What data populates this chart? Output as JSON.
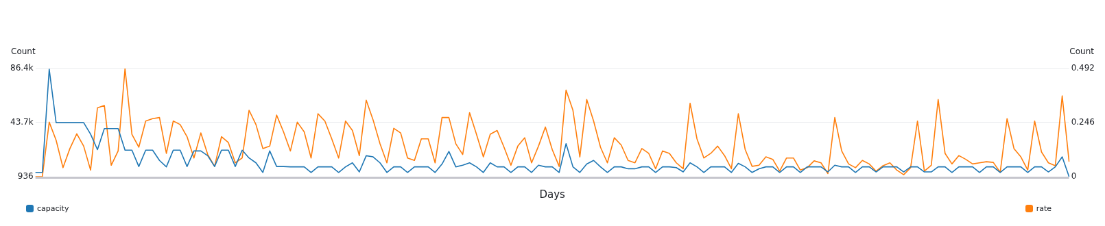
{
  "chart_data": {
    "type": "line",
    "xlabel": "Days",
    "ylabel": "Count",
    "y2label": "Count",
    "categories": [
      null,
      null,
      null,
      null,
      null,
      null,
      null,
      null,
      null,
      null,
      null,
      null,
      null,
      null,
      null,
      null,
      null,
      null,
      null,
      null,
      null,
      null,
      null,
      null,
      null,
      null,
      null,
      null,
      null,
      null,
      null,
      null,
      null,
      null,
      null,
      null,
      null,
      null,
      null,
      null,
      null,
      null,
      null,
      null,
      null,
      null,
      null,
      null,
      null,
      null,
      null,
      null,
      null,
      null,
      null,
      null,
      null,
      null,
      null,
      null,
      null,
      null,
      null,
      null,
      null,
      null,
      null,
      null,
      null,
      null,
      null,
      null,
      null,
      null,
      null,
      null,
      null,
      null,
      null,
      null,
      null,
      null,
      null,
      null,
      null,
      null,
      null,
      null,
      null,
      null,
      null,
      null,
      null,
      null,
      null,
      null,
      null,
      null,
      null,
      null,
      null,
      null,
      null,
      null,
      null,
      null,
      null,
      null,
      null,
      null,
      null,
      null,
      null,
      null,
      null,
      null,
      null,
      null,
      null,
      null,
      null,
      null,
      null,
      null,
      null,
      null,
      null,
      null,
      null,
      null,
      null,
      null,
      null,
      null,
      null,
      null,
      null,
      null,
      null,
      null,
      null,
      null,
      null,
      null,
      null,
      null,
      null,
      null,
      null,
      null,
      null
    ],
    "series": [
      {
        "name": "capacity",
        "color": "#1f77b4",
        "axis": "y",
        "values": [
          4300,
          4300,
          85800,
          43600,
          43600,
          43600,
          43600,
          43600,
          34500,
          22300,
          38900,
          38900,
          38900,
          21900,
          21900,
          9000,
          21900,
          21900,
          13800,
          8700,
          21900,
          21900,
          9000,
          21300,
          21300,
          17500,
          9000,
          21900,
          21900,
          9000,
          21900,
          15700,
          11900,
          4300,
          21300,
          9000,
          9000,
          8700,
          8700,
          8700,
          4300,
          8700,
          8700,
          8700,
          4300,
          8700,
          11900,
          4700,
          17500,
          16600,
          11900,
          4300,
          8700,
          8700,
          4300,
          8700,
          8700,
          8700,
          4300,
          10900,
          20900,
          8700,
          10000,
          11900,
          8700,
          4300,
          11900,
          8700,
          8700,
          4300,
          8700,
          8700,
          4300,
          10000,
          8700,
          8700,
          4300,
          27000,
          8700,
          4300,
          10900,
          13800,
          8700,
          4300,
          8700,
          8700,
          7200,
          7200,
          8700,
          8700,
          4300,
          8700,
          8700,
          8100,
          4700,
          11900,
          8700,
          4300,
          8700,
          8700,
          8700,
          4300,
          11500,
          8700,
          4300,
          7200,
          8700,
          8700,
          4300,
          8700,
          8700,
          4300,
          8700,
          8700,
          8700,
          4700,
          10000,
          8700,
          8700,
          4300,
          8700,
          8700,
          4700,
          8700,
          8700,
          8700,
          4700,
          8700,
          8700,
          4700,
          4700,
          8700,
          8700,
          4300,
          8700,
          8700,
          8700,
          4300,
          8700,
          8700,
          4300,
          8700,
          8700,
          8700,
          4300,
          8700,
          8700,
          4700,
          8700,
          16600,
          936
        ]
      },
      {
        "name": "rate",
        "color": "#ff7f0e",
        "axis": "y2",
        "values": [
          0,
          0,
          0.248,
          0.166,
          0.041,
          0.128,
          0.195,
          0.139,
          0.03,
          0.313,
          0.324,
          0.052,
          0.117,
          0.492,
          0.193,
          0.134,
          0.253,
          0.264,
          0.269,
          0.106,
          0.253,
          0.237,
          0.182,
          0.085,
          0.199,
          0.101,
          0.047,
          0.182,
          0.155,
          0.063,
          0.085,
          0.302,
          0.237,
          0.128,
          0.139,
          0.28,
          0.204,
          0.117,
          0.248,
          0.204,
          0.085,
          0.286,
          0.253,
          0.172,
          0.085,
          0.253,
          0.21,
          0.096,
          0.348,
          0.258,
          0.15,
          0.063,
          0.22,
          0.199,
          0.085,
          0.074,
          0.172,
          0.172,
          0.063,
          0.269,
          0.269,
          0.15,
          0.101,
          0.291,
          0.193,
          0.09,
          0.193,
          0.21,
          0.134,
          0.052,
          0.139,
          0.177,
          0.063,
          0.139,
          0.226,
          0.123,
          0.047,
          0.394,
          0.302,
          0.09,
          0.351,
          0.253,
          0.134,
          0.063,
          0.177,
          0.144,
          0.074,
          0.063,
          0.128,
          0.106,
          0.036,
          0.117,
          0.106,
          0.063,
          0.036,
          0.334,
          0.172,
          0.085,
          0.106,
          0.139,
          0.096,
          0.036,
          0.286,
          0.123,
          0.047,
          0.052,
          0.09,
          0.079,
          0.025,
          0.085,
          0.085,
          0.03,
          0.041,
          0.072,
          0.063,
          0.014,
          0.269,
          0.117,
          0.058,
          0.041,
          0.074,
          0.058,
          0.025,
          0.05,
          0.063,
          0.03,
          0.009,
          0.041,
          0.253,
          0.025,
          0.052,
          0.351,
          0.106,
          0.058,
          0.096,
          0.079,
          0.058,
          0.063,
          0.068,
          0.065,
          0.02,
          0.264,
          0.128,
          0.09,
          0.03,
          0.253,
          0.112,
          0.063,
          0.05,
          0.367,
          0.068
        ]
      }
    ],
    "ylim": [
      936,
      86400
    ],
    "yticks": [
      936,
      {
        "value": 43700,
        "label": "43.7k"
      },
      {
        "value": 86400,
        "label": "86.4k"
      }
    ],
    "y2lim": [
      0,
      0.492
    ],
    "y2ticks": [
      0,
      0.246,
      0.492
    ],
    "grid": "y",
    "legend": "bottom",
    "marker": "none",
    "line_style": "solid"
  }
}
